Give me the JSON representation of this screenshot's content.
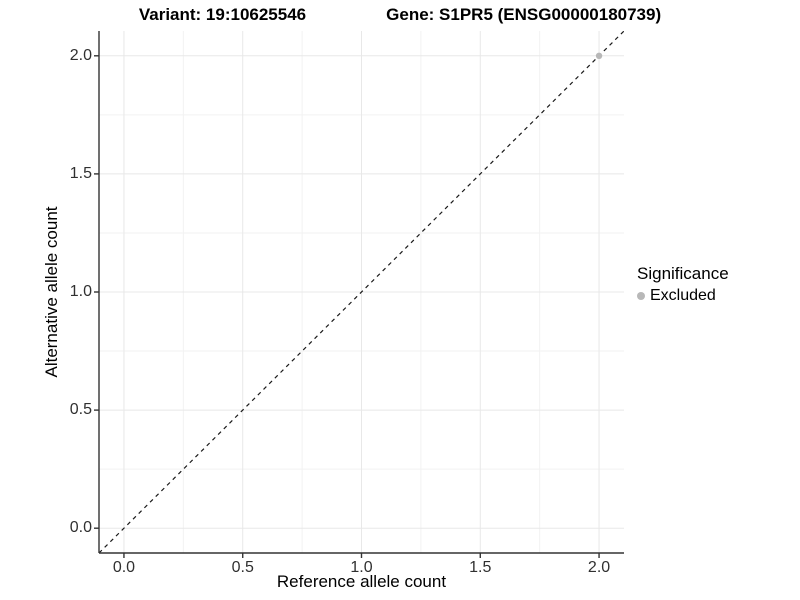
{
  "figure": {
    "variant_title": "Variant: 19:10625546",
    "gene_title": "Gene: S1PR5 (ENSG00000180739)"
  },
  "chart_data": {
    "type": "scatter",
    "title": "Variant: 19:10625546   Gene: S1PR5 (ENSG00000180739)",
    "xlabel": "Reference allele count",
    "ylabel": "Alternative allele count",
    "xlim": [
      -0.105,
      2.105
    ],
    "ylim": [
      -0.105,
      2.105
    ],
    "x_ticks": [
      0.0,
      0.5,
      1.0,
      1.5,
      2.0
    ],
    "y_ticks": [
      0.0,
      0.5,
      1.0,
      1.5,
      2.0
    ],
    "x_tick_labels": [
      "0.0",
      "0.5",
      "1.0",
      "1.5",
      "2.0"
    ],
    "y_tick_labels": [
      "0.0",
      "0.5",
      "1.0",
      "1.5",
      "2.0"
    ],
    "minor_gridlines": [
      0.25,
      0.75,
      1.25,
      1.75
    ],
    "grid": true,
    "reference_line": {
      "style": "dashed",
      "from": [
        -0.105,
        -0.105
      ],
      "to": [
        2.105,
        2.105
      ]
    },
    "series": [
      {
        "name": "Excluded",
        "color": "#b8b8b8",
        "points": [
          [
            2.0,
            2.0
          ]
        ]
      }
    ],
    "legend": {
      "title": "Significance",
      "position": "right",
      "entries": [
        {
          "label": "Excluded",
          "color": "#b8b8b8"
        }
      ]
    }
  },
  "colors": {
    "background": "#ffffff",
    "grid_major": "#e8e8e8",
    "grid_minor": "#f2f2f2",
    "axis_line": "#333333",
    "tick_mark": "#333333",
    "tick_text": "#303030",
    "dashed_line": "#1a1a1a",
    "point": "#b8b8b8"
  }
}
